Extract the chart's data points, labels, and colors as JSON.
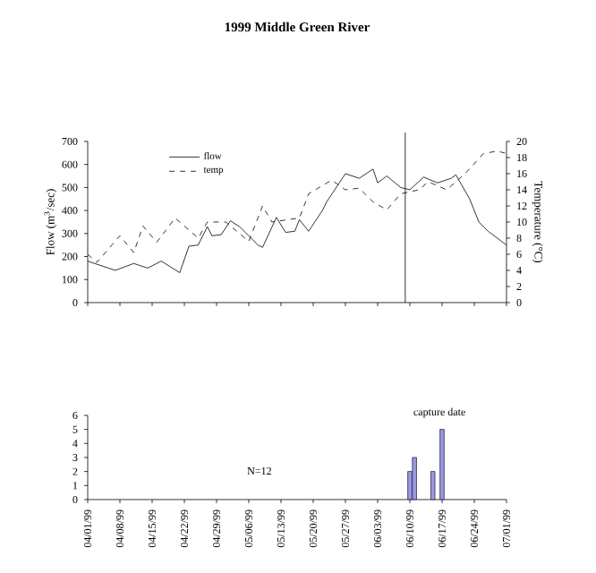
{
  "chart_data": [
    {
      "type": "line",
      "title": "1999 Middle Green River",
      "ylabel": "Flow (m$^{3}$/sec)",
      "y2label": "Temperature (°C)",
      "xlim": [
        "1999-04-01",
        "1999-07-01"
      ],
      "xticks": [
        {
          "value": "1999-04-01",
          "label": null
        },
        {
          "value": "1999-04-08",
          "label": null
        },
        {
          "value": "1999-04-15",
          "label": null
        },
        {
          "value": "1999-04-22",
          "label": null
        },
        {
          "value": "1999-04-29",
          "label": null
        },
        {
          "value": "1999-05-06",
          "label": null
        },
        {
          "value": "1999-05-13",
          "label": null
        },
        {
          "value": "1999-05-20",
          "label": null
        },
        {
          "value": "1999-05-27",
          "label": null
        },
        {
          "value": "1999-06-03",
          "label": null
        },
        {
          "value": "1999-06-10",
          "label": null
        },
        {
          "value": "1999-06-17",
          "label": null
        },
        {
          "value": "1999-06-24",
          "label": null
        },
        {
          "value": "1999-07-01",
          "label": null
        }
      ],
      "ylim": [
        0,
        700
      ],
      "yticks": [
        0,
        100,
        200,
        300,
        400,
        500,
        600,
        700
      ],
      "y2lim": [
        0,
        20
      ],
      "y2ticks": [
        0,
        2,
        4,
        6,
        8,
        10,
        12,
        14,
        16,
        18,
        20
      ],
      "tick_labels": "y",
      "legend": "top left",
      "marker": "none",
      "ref_lines": [
        {
          "axis": "x",
          "value": "1999-06-09",
          "color": "#000000"
        }
      ],
      "series": [
        {
          "name": "flow",
          "color": "#000000",
          "line_style": "solid",
          "x": [
            "1999-04-01",
            "1999-04-07",
            "1999-04-11",
            "1999-04-14",
            "1999-04-17",
            "1999-04-21",
            "1999-04-23",
            "1999-04-25",
            "1999-04-27",
            "1999-04-28",
            "1999-04-30",
            "1999-05-02",
            "1999-05-04",
            "1999-05-08",
            "1999-05-09",
            "1999-05-12",
            "1999-05-14",
            "1999-05-16",
            "1999-05-17",
            "1999-05-19",
            "1999-05-22",
            "1999-05-23",
            "1999-05-27",
            "1999-05-30",
            "1999-06-02",
            "1999-06-03",
            "1999-06-05",
            "1999-06-08",
            "1999-06-10",
            "1999-06-13",
            "1999-06-16",
            "1999-06-19",
            "1999-06-20",
            "1999-06-23",
            "1999-06-25",
            "1999-06-27",
            "1999-07-01"
          ],
          "values": [
            180,
            140,
            170,
            150,
            180,
            130,
            245,
            250,
            330,
            290,
            295,
            355,
            330,
            250,
            240,
            370,
            305,
            310,
            360,
            310,
            400,
            440,
            560,
            540,
            580,
            520,
            550,
            500,
            490,
            545,
            520,
            540,
            555,
            450,
            350,
            310,
            250
          ]
        },
        {
          "name": "temp",
          "color": "#000000",
          "line_style": "dashed",
          "axis": "y2",
          "x": [
            "1999-04-01",
            "1999-04-03",
            "1999-04-08",
            "1999-04-11",
            "1999-04-13",
            "1999-04-16",
            "1999-04-20",
            "1999-04-25",
            "1999-04-27",
            "1999-05-01",
            "1999-05-06",
            "1999-05-09",
            "1999-05-11",
            "1999-05-17",
            "1999-05-19",
            "1999-05-24",
            "1999-05-27",
            "1999-05-30",
            "1999-06-02",
            "1999-06-05",
            "1999-06-08",
            "1999-06-12",
            "1999-06-14",
            "1999-06-18",
            "1999-06-22",
            "1999-06-26",
            "1999-06-29",
            "1999-07-01"
          ],
          "values": [
            6,
            5,
            8.3,
            6.2,
            9.5,
            7.5,
            10.5,
            8,
            10,
            10,
            7.6,
            12,
            10,
            10.5,
            13.5,
            15.2,
            14,
            14.2,
            12.5,
            11.5,
            13.5,
            14,
            15,
            14,
            16,
            18.5,
            18.8,
            18.5
          ]
        }
      ]
    },
    {
      "type": "bar",
      "annotations": [
        "capture date",
        "N=12"
      ],
      "x": [
        "1999-06-10",
        "1999-06-11",
        "1999-06-15",
        "1999-06-17"
      ],
      "values": [
        2,
        3,
        2,
        5
      ],
      "color": "#9a9ade",
      "xlim": [
        "1999-04-01",
        "1999-07-01"
      ],
      "xticks": [
        {
          "value": "1999-04-01",
          "label": "04/01/99"
        },
        {
          "value": "1999-04-08",
          "label": "04/08/99"
        },
        {
          "value": "1999-04-15",
          "label": "04/15/99"
        },
        {
          "value": "1999-04-22",
          "label": "04/22/99"
        },
        {
          "value": "1999-04-29",
          "label": "04/29/99"
        },
        {
          "value": "1999-05-06",
          "label": "05/06/99"
        },
        {
          "value": "1999-05-13",
          "label": "05/13/99"
        },
        {
          "value": "1999-05-20",
          "label": "05/20/99"
        },
        {
          "value": "1999-05-27",
          "label": "05/27/99"
        },
        {
          "value": "1999-06-03",
          "label": "06/03/99"
        },
        {
          "value": "1999-06-10",
          "label": "06/10/99"
        },
        {
          "value": "1999-06-17",
          "label": "06/17/99"
        },
        {
          "value": "1999-06-24",
          "label": "06/24/99"
        },
        {
          "value": "1999-07-01",
          "label": "07/01/99"
        }
      ],
      "ylim": [
        0,
        6
      ],
      "yticks": [
        0,
        1,
        2,
        3,
        4,
        5,
        6
      ]
    }
  ]
}
